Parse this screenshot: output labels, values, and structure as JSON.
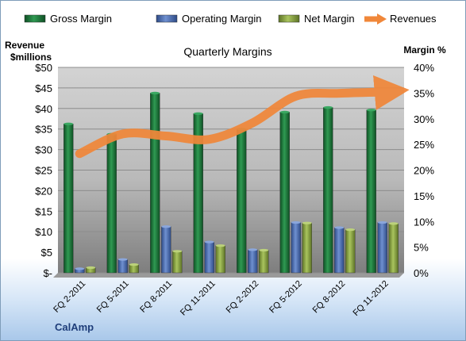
{
  "chart_data": {
    "type": "bar",
    "title": "Quarterly Margins",
    "company": "CalAmp",
    "ylabel_left": [
      "Revenue",
      "$millions"
    ],
    "ylabel_right": "Margin  %",
    "categories": [
      "FQ 2-2011",
      "FQ 5-2011",
      "FQ 8-2011",
      "FQ 11-2011",
      "FQ 2-2012",
      "FQ 5-2012",
      "FQ 8-2012",
      "FQ 11-2012"
    ],
    "left_ticks": [
      "$-",
      "$5",
      "$10",
      "$15",
      "$20",
      "$25",
      "$30",
      "$35",
      "$40",
      "$45",
      "$50"
    ],
    "right_ticks": [
      "0%",
      "5%",
      "10%",
      "15%",
      "20%",
      "25%",
      "30%",
      "35%",
      "40%"
    ],
    "left_range": [
      0,
      50
    ],
    "right_range": [
      0,
      40
    ],
    "series": [
      {
        "name": "Gross Margin",
        "axis": "right",
        "type": "bar",
        "color": "#1f7a3c",
        "values": [
          29.0,
          27.0,
          35.0,
          31.0,
          28.0,
          31.3,
          32.2,
          31.7
        ]
      },
      {
        "name": "Operating Margin",
        "axis": "right",
        "type": "bar",
        "color": "#4f72b8",
        "values": [
          0.8,
          2.6,
          9.0,
          6.0,
          4.5,
          9.8,
          8.8,
          9.8
        ]
      },
      {
        "name": "Net Margin",
        "axis": "right",
        "type": "bar",
        "color": "#8faa48",
        "values": [
          1.0,
          1.6,
          4.2,
          5.3,
          4.4,
          9.7,
          8.4,
          9.6
        ]
      },
      {
        "name": "Revenues",
        "axis": "left",
        "type": "line",
        "color": "#f0873a",
        "values": [
          29.0,
          33.8,
          33.3,
          32.5,
          36.5,
          43.0,
          43.7,
          44.0
        ]
      }
    ],
    "legend_position": "top",
    "grid": true
  }
}
